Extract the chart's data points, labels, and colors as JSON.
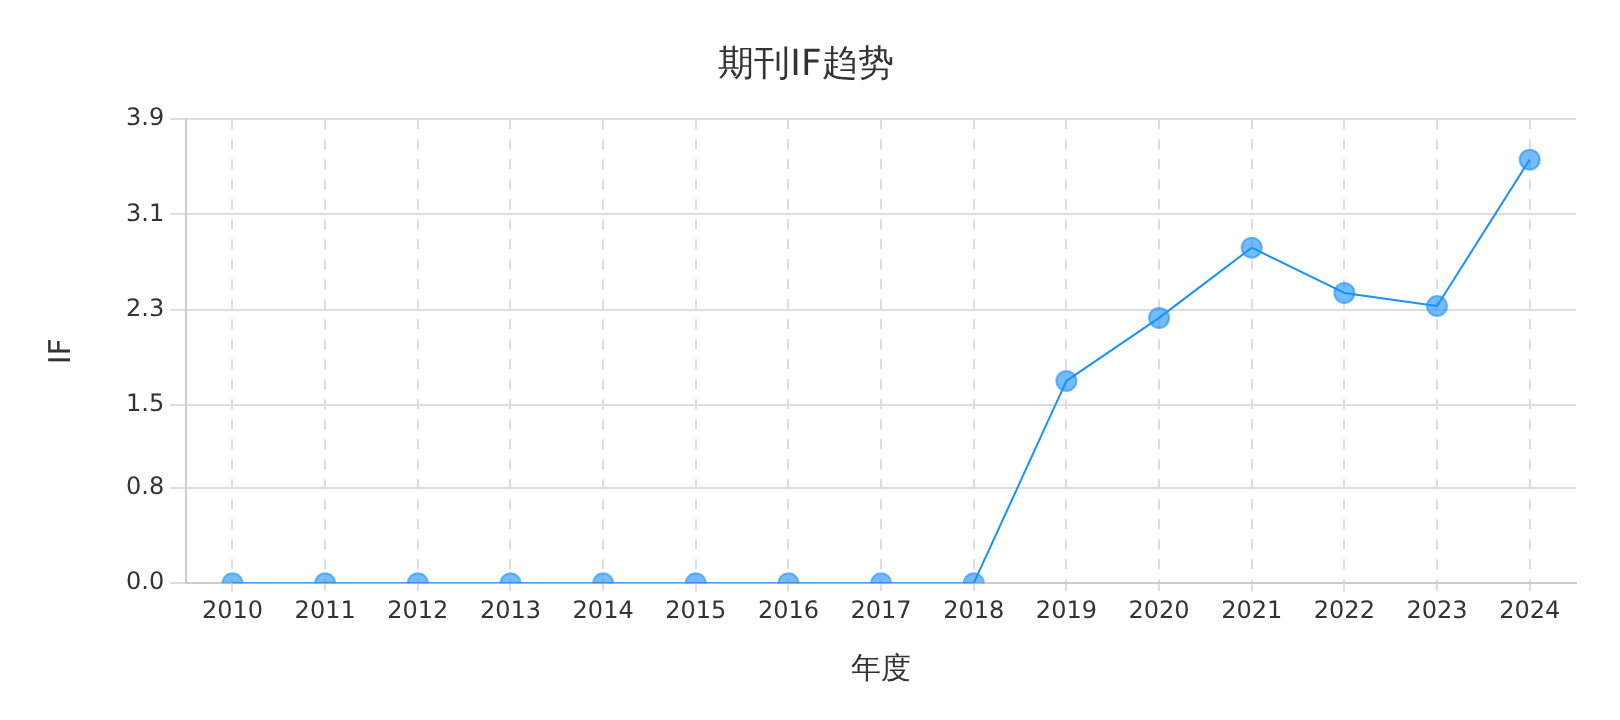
{
  "chart_data": {
    "type": "line",
    "title": "期刊IF趋势",
    "xlabel": "年度",
    "ylabel": "IF",
    "categories": [
      "2010",
      "2011",
      "2012",
      "2013",
      "2014",
      "2015",
      "2016",
      "2017",
      "2018",
      "2019",
      "2020",
      "2021",
      "2022",
      "2023",
      "2024"
    ],
    "series": [
      {
        "color": "#1890ff",
        "values": [
          0,
          0,
          0,
          0,
          0,
          0,
          0,
          0,
          0,
          1.7,
          2.23,
          2.82,
          2.44,
          2.33,
          3.56
        ]
      }
    ],
    "ylim": [
      0,
      3.9
    ],
    "yticks": [
      {
        "value": 0,
        "label": "0.0"
      },
      0.8,
      1.5,
      2.3,
      3.1,
      3.9
    ],
    "grid": true,
    "legend": false,
    "marker": "circle",
    "line_style": "solid"
  }
}
